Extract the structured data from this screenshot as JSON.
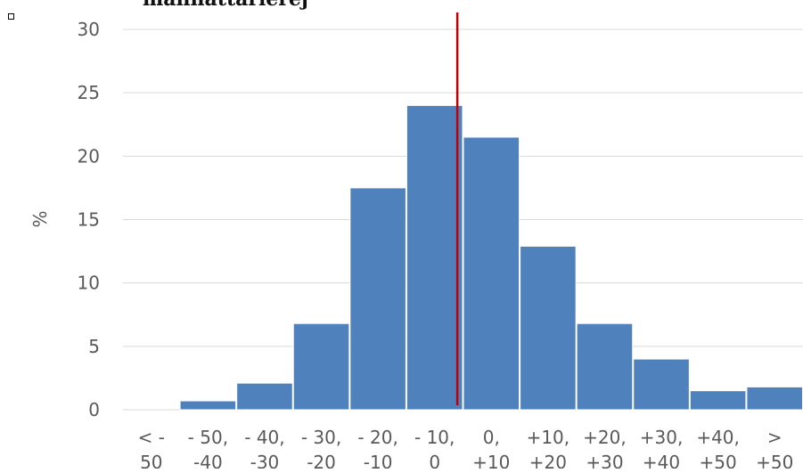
{
  "chart_data": {
    "type": "bar",
    "title": "mannattarierej",
    "ylabel": "%",
    "xlabel": "",
    "ylim": [
      0,
      30
    ],
    "yticks": [
      0,
      5,
      10,
      15,
      20,
      25,
      30
    ],
    "grid": true,
    "categories": [
      [
        "< -",
        "50"
      ],
      [
        "- 50,",
        "-40"
      ],
      [
        "- 40,",
        "-30"
      ],
      [
        "- 30,",
        "-20"
      ],
      [
        "- 20,",
        "-10"
      ],
      [
        "- 10,",
        "0"
      ],
      [
        "0,",
        "+10"
      ],
      [
        "+10,",
        "+20"
      ],
      [
        "+20,",
        "+30"
      ],
      [
        "+30,",
        "+40"
      ],
      [
        "+40,",
        "+50"
      ],
      [
        ">",
        "+50"
      ]
    ],
    "values": [
      0,
      0.7,
      2.1,
      6.8,
      17.5,
      24.0,
      21.5,
      12.9,
      6.8,
      4.0,
      1.5,
      1.8
    ],
    "reference_line": {
      "x_category_index": 5,
      "x_offset_fraction": 0.9,
      "color": "#c00000"
    },
    "colors": {
      "bar": "#4f81bd",
      "grid": "#d9d9d9",
      "ref_line": "#c00000"
    }
  }
}
